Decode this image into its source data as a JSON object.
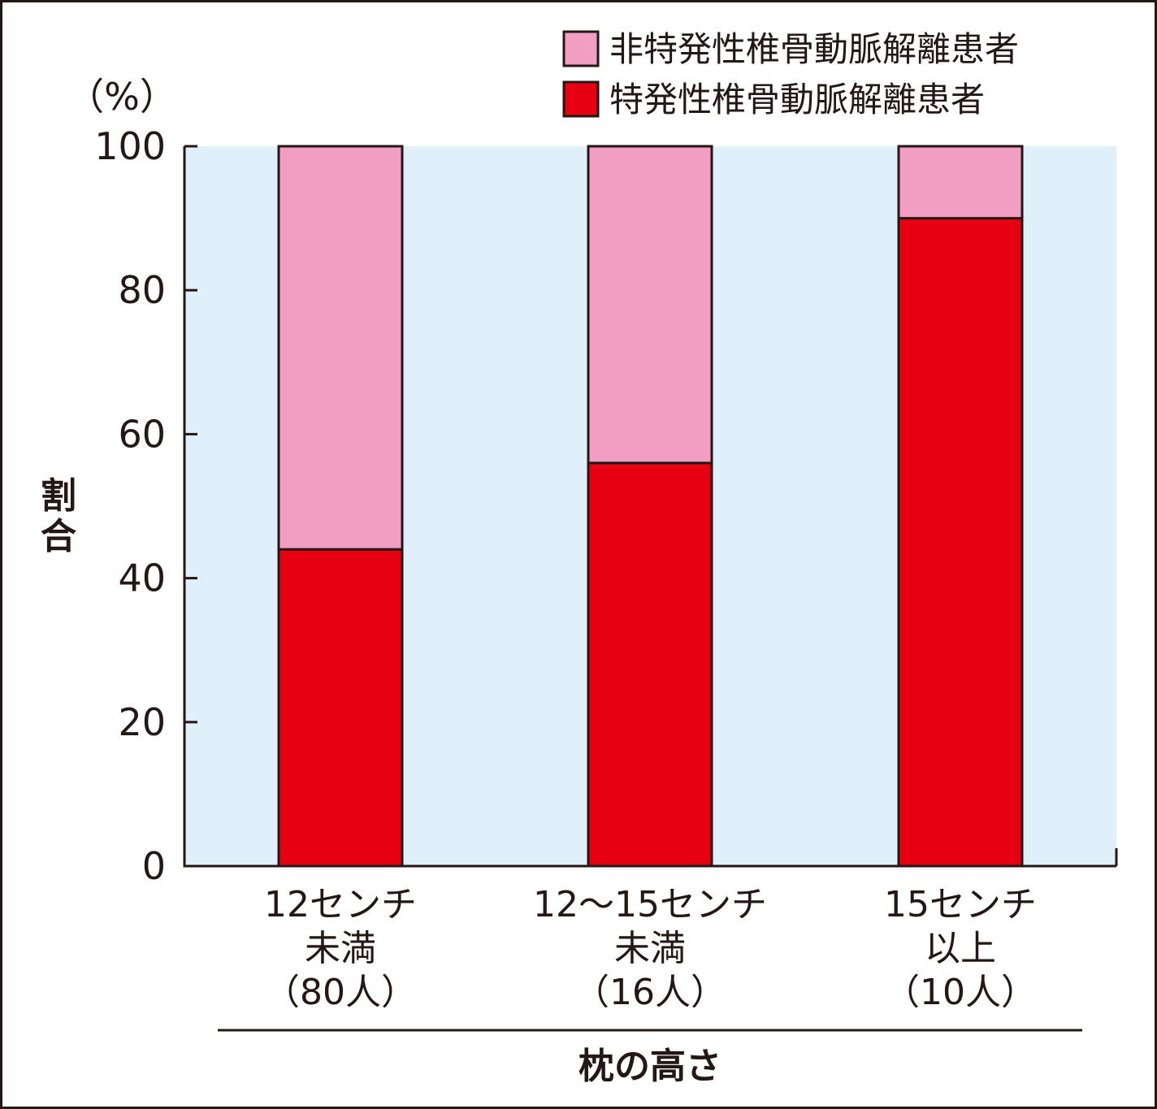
{
  "chart_data": {
    "type": "bar",
    "stacked": true,
    "categories": [
      [
        "12センチ",
        "未満",
        "（80人）"
      ],
      [
        "12～15センチ",
        "未満",
        "（16人）"
      ],
      [
        "15センチ",
        "以上",
        "（10人）"
      ]
    ],
    "series": [
      {
        "name": "特発性椎骨動脈解離患者",
        "color": "#e60012",
        "values": [
          44,
          56,
          90
        ]
      },
      {
        "name": "非特発性椎骨動脈解離患者",
        "color": "#f19ec2",
        "values": [
          56,
          44,
          10
        ]
      }
    ],
    "legend_order": [
      1,
      0
    ],
    "legend_position": "top-right",
    "ylabel": "割合",
    "yunit": "（%）",
    "xlabel": "枕の高さ",
    "ylim": [
      0,
      100
    ],
    "yticks": [
      0,
      20,
      40,
      60,
      80,
      100
    ],
    "plot_background": "#dff0fa",
    "grid": false
  }
}
